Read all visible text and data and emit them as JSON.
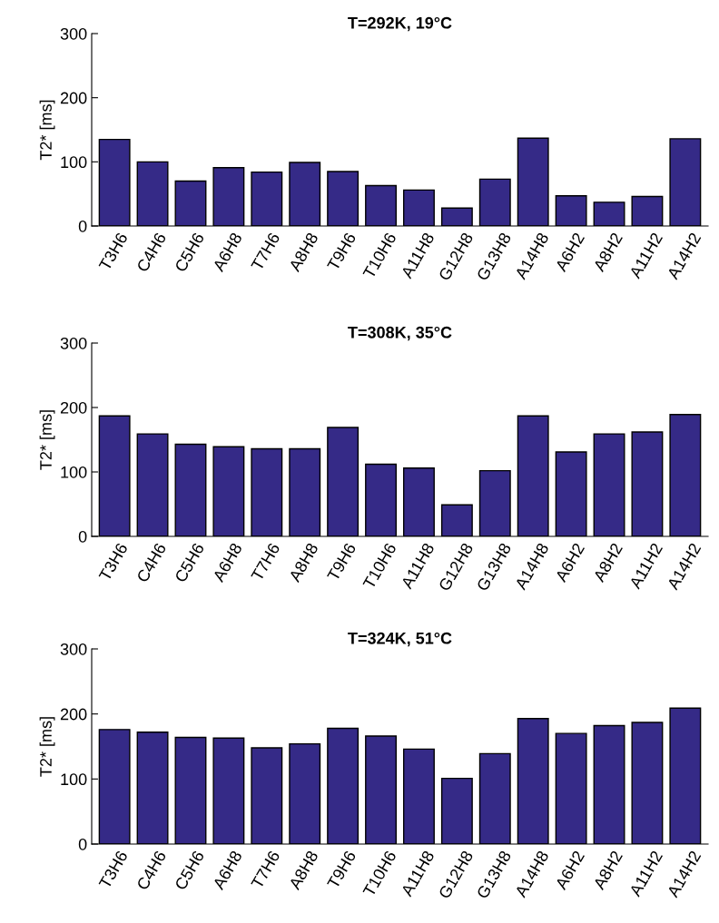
{
  "chart_data": [
    {
      "type": "bar",
      "title": "T=292K, 19°C",
      "ylabel": "T2* [ms]",
      "categories": [
        "T3H6",
        "C4H6",
        "C5H6",
        "A6H8",
        "T7H6",
        "A8H8",
        "T9H6",
        "T10H6",
        "A11H8",
        "G12H8",
        "G13H8",
        "A14H8",
        "A6H2",
        "A8H2",
        "A11H2",
        "A14H2"
      ],
      "color": "#352a87",
      "ylim": [
        0,
        300
      ],
      "yticks": [
        0,
        100,
        200,
        300
      ],
      "grid": false,
      "legend": false,
      "values": [
        135,
        100,
        70,
        91,
        84,
        99,
        85,
        63,
        56,
        28,
        73,
        137,
        47,
        37,
        46,
        136
      ]
    },
    {
      "type": "bar",
      "title": "T=308K, 35°C",
      "ylabel": "T2* [ms]",
      "categories": [
        "T3H6",
        "C4H6",
        "C5H6",
        "A6H8",
        "T7H6",
        "A8H8",
        "T9H6",
        "T10H6",
        "A11H8",
        "G12H8",
        "G13H8",
        "A14H8",
        "A6H2",
        "A8H2",
        "A11H2",
        "A14H2"
      ],
      "color": "#352a87",
      "ylim": [
        0,
        300
      ],
      "yticks": [
        0,
        100,
        200,
        300
      ],
      "grid": false,
      "legend": false,
      "values": [
        187,
        159,
        143,
        139,
        136,
        136,
        169,
        112,
        106,
        49,
        102,
        187,
        131,
        159,
        162,
        189
      ]
    },
    {
      "type": "bar",
      "title": "T=324K, 51°C",
      "ylabel": "T2* [ms]",
      "categories": [
        "T3H6",
        "C4H6",
        "C5H6",
        "A6H8",
        "T7H6",
        "A8H8",
        "T9H6",
        "T10H6",
        "A11H8",
        "G12H8",
        "G13H8",
        "A14H8",
        "A6H2",
        "A8H2",
        "A11H2",
        "A14H2"
      ],
      "color": "#352a87",
      "ylim": [
        0,
        300
      ],
      "yticks": [
        0,
        100,
        200,
        300
      ],
      "grid": false,
      "legend": false,
      "values": [
        176,
        172,
        164,
        163,
        148,
        154,
        178,
        166,
        146,
        101,
        139,
        193,
        170,
        182,
        187,
        209
      ]
    }
  ]
}
